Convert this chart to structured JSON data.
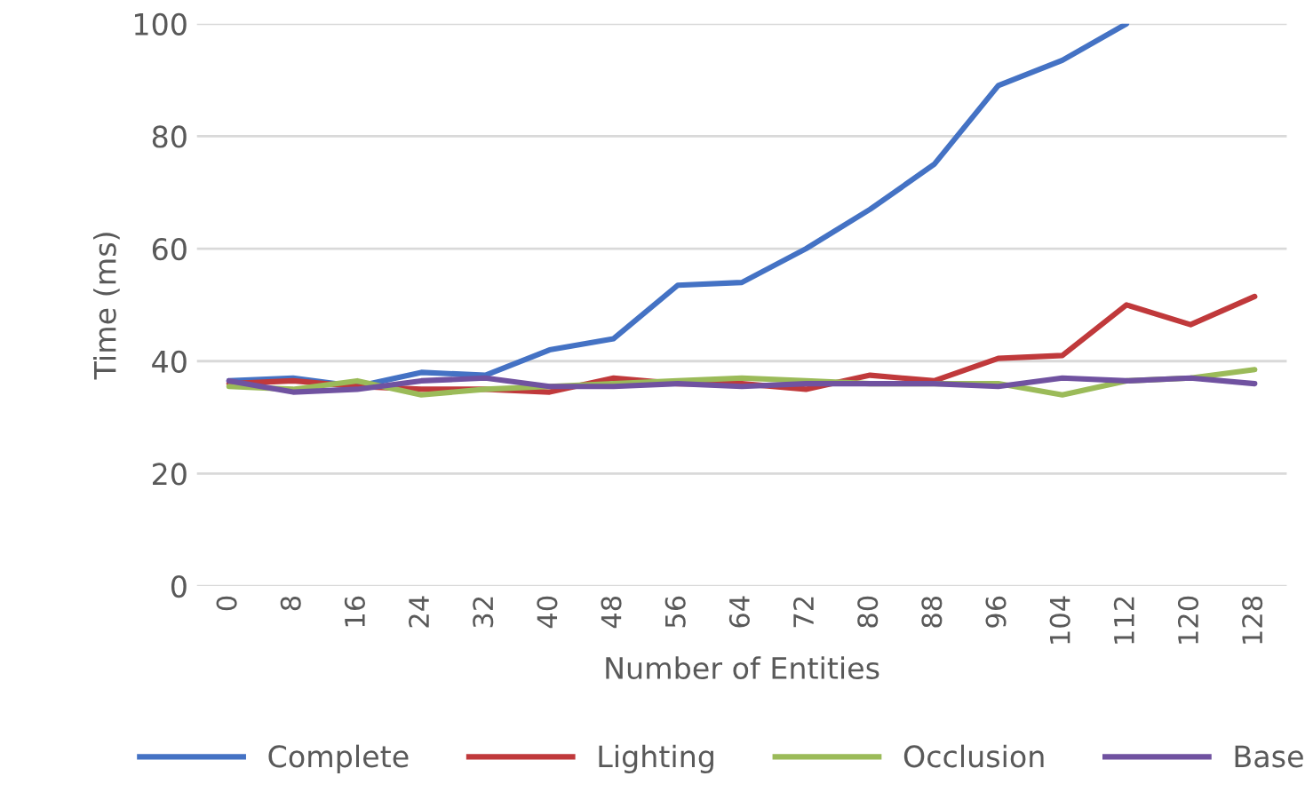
{
  "chart_data": {
    "type": "line",
    "xlabel": "Number of Entities",
    "ylabel": "Time (ms)",
    "categories": [
      "0",
      "8",
      "16",
      "24",
      "32",
      "40",
      "48",
      "56",
      "64",
      "72",
      "80",
      "88",
      "96",
      "104",
      "112",
      "120",
      "128"
    ],
    "series": [
      {
        "name": "Complete",
        "color": "#4472c4",
        "values": [
          36.5,
          37,
          35.5,
          38,
          37.5,
          42,
          44,
          53.5,
          54,
          60,
          67,
          75,
          89,
          93.5,
          100,
          null,
          null
        ]
      },
      {
        "name": "Lighting",
        "color": "#c0393b",
        "values": [
          36,
          36.5,
          35.5,
          35,
          35,
          34.5,
          37,
          36,
          36,
          35,
          37.5,
          36.5,
          40.5,
          41,
          50,
          46.5,
          51.5
        ]
      },
      {
        "name": "Occlusion",
        "color": "#9bbb59",
        "values": [
          35.5,
          35,
          36.5,
          34,
          35,
          35.5,
          36,
          36.5,
          37,
          36.5,
          36,
          36,
          36,
          34,
          36.5,
          37,
          38.5
        ]
      },
      {
        "name": "Base",
        "color": "#7052a0",
        "values": [
          36.5,
          34.5,
          35,
          36.5,
          37,
          35.5,
          35.5,
          36,
          35.5,
          36,
          36,
          36,
          35.5,
          37,
          36.5,
          37,
          36
        ]
      }
    ],
    "ylim": [
      0,
      100
    ],
    "yticks": [
      0,
      20,
      40,
      60,
      80,
      100
    ],
    "grid": "y",
    "legend": "bottom",
    "marker": "none",
    "line_style": "solid"
  }
}
